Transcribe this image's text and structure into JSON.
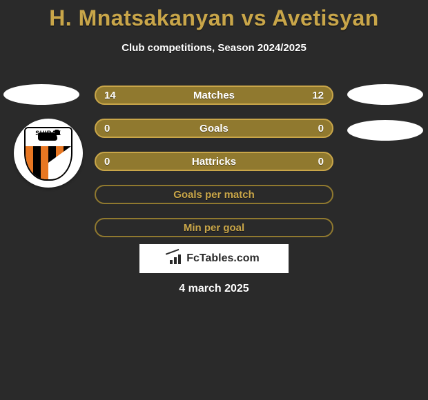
{
  "title": "H. Mnatsakanyan vs Avetisyan",
  "subtitle": "Club competitions, Season 2024/2025",
  "date": "4 march 2025",
  "badge": {
    "text": "SHIRAK"
  },
  "colors": {
    "accent": "#c9a649",
    "bar_fill": "#90792f",
    "bar_border_light": "#d9c06b",
    "text_white": "#ffffff",
    "background": "#2a2a2a"
  },
  "watermark": {
    "text": "FcTables.com"
  },
  "bars": [
    {
      "label": "Matches",
      "left": "14",
      "right": "12",
      "fill": true,
      "label_color": "#ffffff"
    },
    {
      "label": "Goals",
      "left": "0",
      "right": "0",
      "fill": true,
      "label_color": "#ffffff"
    },
    {
      "label": "Hattricks",
      "left": "0",
      "right": "0",
      "fill": true,
      "label_color": "#ffffff"
    },
    {
      "label": "Goals per match",
      "left": "",
      "right": "",
      "fill": false,
      "label_color": "#c9a649"
    },
    {
      "label": "Min per goal",
      "left": "",
      "right": "",
      "fill": false,
      "label_color": "#c9a649"
    }
  ]
}
